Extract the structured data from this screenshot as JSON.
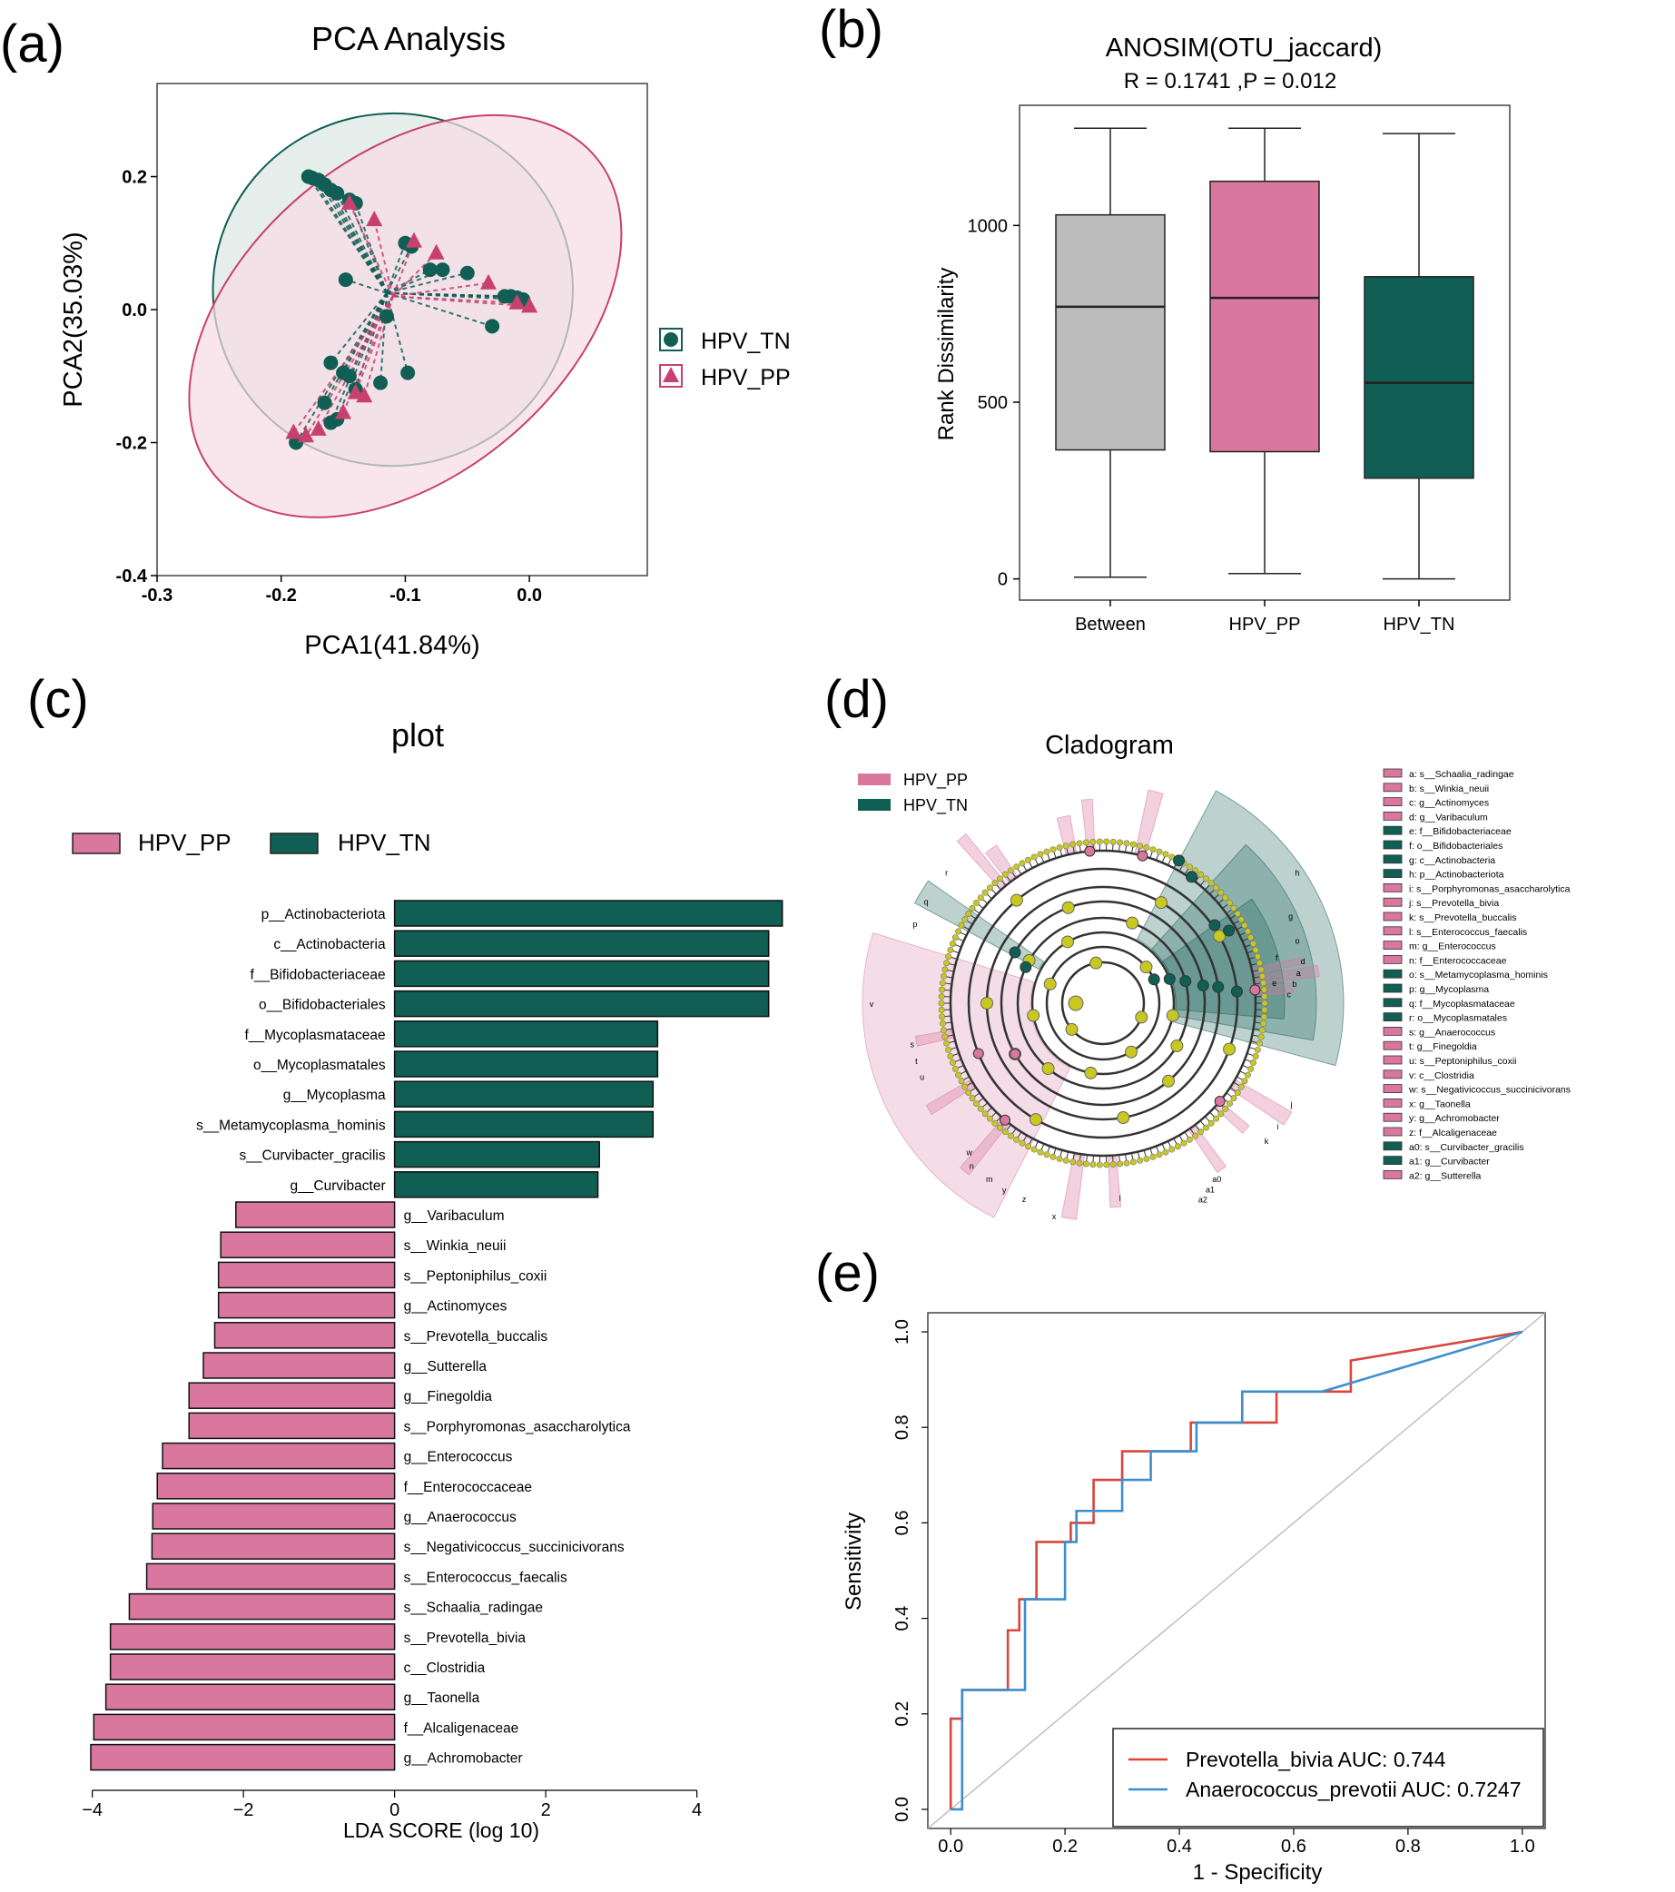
{
  "colors": {
    "pp": "#d9779f",
    "pp_line": "#c8406e",
    "pp_fill": "#f7dbe6",
    "tn": "#115e54",
    "tn_fill": "#dde8e4",
    "grey": "#bcbcbc",
    "roc_red": "#d9453f",
    "roc_blue": "#3c8fcf",
    "yellow": "#c8c820"
  },
  "panel_labels": {
    "a": "(a)",
    "b": "(b)",
    "c": "(c)",
    "d": "(d)",
    "e": "(e)"
  },
  "chart_data": [
    {
      "id": "a",
      "type": "scatter",
      "title": "PCA Analysis",
      "xlabel": "PCA1(41.84%)",
      "ylabel": "PCA2(35.03%)",
      "xlim": [
        -0.3,
        0.095
      ],
      "ylim": [
        -0.4,
        0.34
      ],
      "xticks": [
        -0.3,
        -0.2,
        -0.1,
        0.0
      ],
      "xtick_labels": [
        "-0.3",
        "-0.2",
        "-0.1",
        "0.0"
      ],
      "yticks": [
        -0.4,
        -0.2,
        0.0,
        0.2
      ],
      "ytick_labels": [
        "-0.4",
        "-0.2",
        "0.0",
        "0.2"
      ],
      "legend": [
        "HPV_TN",
        "HPV_PP"
      ],
      "centroids": {
        "HPV_TN": [
          -0.115,
          0.025
        ],
        "HPV_PP": [
          -0.11,
          0.02
        ]
      },
      "series": [
        {
          "name": "HPV_TN",
          "marker": "circle",
          "points": [
            [
              -0.178,
              0.2
            ],
            [
              -0.175,
              0.198
            ],
            [
              -0.17,
              0.195
            ],
            [
              -0.165,
              0.188
            ],
            [
              -0.16,
              0.18
            ],
            [
              -0.155,
              0.175
            ],
            [
              -0.145,
              0.165
            ],
            [
              -0.14,
              0.16
            ],
            [
              -0.148,
              0.045
            ],
            [
              -0.1,
              0.1
            ],
            [
              -0.095,
              0.095
            ],
            [
              -0.08,
              0.06
            ],
            [
              -0.07,
              0.06
            ],
            [
              -0.05,
              0.055
            ],
            [
              -0.02,
              0.02
            ],
            [
              -0.015,
              0.02
            ],
            [
              -0.01,
              0.018
            ],
            [
              -0.005,
              0.015
            ],
            [
              -0.03,
              -0.025
            ],
            [
              -0.115,
              -0.01
            ],
            [
              -0.16,
              -0.08
            ],
            [
              -0.15,
              -0.095
            ],
            [
              -0.145,
              -0.1
            ],
            [
              -0.14,
              -0.12
            ],
            [
              -0.12,
              -0.11
            ],
            [
              -0.098,
              -0.095
            ],
            [
              -0.165,
              -0.14
            ],
            [
              -0.155,
              -0.165
            ],
            [
              -0.16,
              -0.17
            ],
            [
              -0.188,
              -0.2
            ]
          ]
        },
        {
          "name": "HPV_PP",
          "marker": "triangle",
          "points": [
            [
              -0.145,
              0.16
            ],
            [
              -0.125,
              0.135
            ],
            [
              -0.093,
              0.103
            ],
            [
              -0.075,
              0.085
            ],
            [
              -0.033,
              0.04
            ],
            [
              -0.01,
              0.01
            ],
            [
              0.0,
              0.005
            ],
            [
              -0.14,
              -0.125
            ],
            [
              -0.133,
              -0.13
            ],
            [
              -0.15,
              -0.155
            ],
            [
              -0.17,
              -0.18
            ],
            [
              -0.18,
              -0.19
            ],
            [
              -0.19,
              -0.185
            ]
          ]
        }
      ],
      "ellipses": [
        {
          "name": "HPV_TN",
          "cx": -0.11,
          "cy": 0.03,
          "rx": 0.145,
          "ry": 0.265,
          "angle": -5
        },
        {
          "name": "HPV_PP",
          "cx": -0.1,
          "cy": -0.01,
          "rx": 0.2,
          "ry": 0.24,
          "angle": -40
        }
      ]
    },
    {
      "id": "b",
      "type": "box",
      "title": "ANOSIM(OTU_jaccard)",
      "subtitle": "R = 0.1741 ,P = 0.012",
      "ylabel": "Rank Dissimilarity",
      "xlabel": "",
      "ylim": [
        -60,
        1340
      ],
      "yticks": [
        0,
        500,
        1000
      ],
      "ytick_labels": [
        "0",
        "500",
        "1000"
      ],
      "categories": [
        "Between",
        "HPV_PP",
        "HPV_TN"
      ],
      "boxes": [
        {
          "name": "Between",
          "min": 5,
          "q1": 365,
          "median": 770,
          "q3": 1030,
          "max": 1275,
          "color": "grey"
        },
        {
          "name": "HPV_PP",
          "min": 15,
          "q1": 360,
          "median": 795,
          "q3": 1125,
          "max": 1275,
          "color": "pp"
        },
        {
          "name": "HPV_TN",
          "min": 0,
          "q1": 285,
          "median": 555,
          "q3": 855,
          "max": 1260,
          "color": "tn"
        }
      ]
    },
    {
      "id": "c",
      "type": "bar",
      "title": "plot",
      "xlabel": "LDA SCORE (log 10)",
      "xlim": [
        -4.2,
        5.35
      ],
      "xticks": [
        -4,
        -2,
        0,
        2,
        4
      ],
      "xtick_labels": [
        "−4",
        "−2",
        "0",
        "2",
        "4"
      ],
      "legend": [
        "HPV_PP",
        "HPV_TN"
      ],
      "bars": [
        {
          "label": "p__Actinobacteriota",
          "value": 5.13,
          "group": "HPV_TN"
        },
        {
          "label": "c__Actinobacteria",
          "value": 4.95,
          "group": "HPV_TN"
        },
        {
          "label": "f__Bifidobacteriaceae",
          "value": 4.95,
          "group": "HPV_TN"
        },
        {
          "label": "o__Bifidobacteriales",
          "value": 4.95,
          "group": "HPV_TN"
        },
        {
          "label": "f__Mycoplasmataceae",
          "value": 3.48,
          "group": "HPV_TN"
        },
        {
          "label": "o__Mycoplasmatales",
          "value": 3.48,
          "group": "HPV_TN"
        },
        {
          "label": "g__Mycoplasma",
          "value": 3.42,
          "group": "HPV_TN"
        },
        {
          "label": "s__Metamycoplasma_hominis",
          "value": 3.42,
          "group": "HPV_TN"
        },
        {
          "label": "s__Curvibacter_gracilis",
          "value": 2.71,
          "group": "HPV_TN"
        },
        {
          "label": "g__Curvibacter",
          "value": 2.69,
          "group": "HPV_TN"
        },
        {
          "label": "g__Varibaculum",
          "value": -2.1,
          "group": "HPV_PP"
        },
        {
          "label": "s__Winkia_neuii",
          "value": -2.3,
          "group": "HPV_PP"
        },
        {
          "label": "s__Peptoniphilus_coxii",
          "value": -2.33,
          "group": "HPV_PP"
        },
        {
          "label": "g__Actinomyces",
          "value": -2.33,
          "group": "HPV_PP"
        },
        {
          "label": "s__Prevotella_buccalis",
          "value": -2.38,
          "group": "HPV_PP"
        },
        {
          "label": "g__Sutterella",
          "value": -2.53,
          "group": "HPV_PP"
        },
        {
          "label": "g__Finegoldia",
          "value": -2.72,
          "group": "HPV_PP"
        },
        {
          "label": "s__Porphyromonas_asaccharolytica",
          "value": -2.72,
          "group": "HPV_PP"
        },
        {
          "label": "g__Enterococcus",
          "value": -3.07,
          "group": "HPV_PP"
        },
        {
          "label": "f__Enterococcaceae",
          "value": -3.14,
          "group": "HPV_PP"
        },
        {
          "label": "g__Anaerococcus",
          "value": -3.2,
          "group": "HPV_PP"
        },
        {
          "label": "s__Negativicoccus_succinicivorans",
          "value": -3.21,
          "group": "HPV_PP"
        },
        {
          "label": "s__Enterococcus_faecalis",
          "value": -3.28,
          "group": "HPV_PP"
        },
        {
          "label": "s__Schaalia_radingae",
          "value": -3.51,
          "group": "HPV_PP"
        },
        {
          "label": "s__Prevotella_bivia",
          "value": -3.76,
          "group": "HPV_PP"
        },
        {
          "label": "c__Clostridia",
          "value": -3.76,
          "group": "HPV_PP"
        },
        {
          "label": "g__Taonella",
          "value": -3.82,
          "group": "HPV_PP"
        },
        {
          "label": "f__Alcaligenaceae",
          "value": -3.98,
          "group": "HPV_PP"
        },
        {
          "label": "g__Achromobacter",
          "value": -4.02,
          "group": "HPV_PP"
        }
      ]
    },
    {
      "id": "d",
      "type": "cladogram",
      "title": "Cladogram",
      "legend": [
        "HPV_PP",
        "HPV_TN"
      ],
      "key": [
        {
          "text": "a: s__Schaalia_radingae",
          "group": "HPV_PP"
        },
        {
          "text": "b: s__Winkia_neuii",
          "group": "HPV_PP"
        },
        {
          "text": "c: g__Actinomyces",
          "group": "HPV_PP"
        },
        {
          "text": "d: g__Varibaculum",
          "group": "HPV_PP"
        },
        {
          "text": "e: f__Bifidobacteriaceae",
          "group": "HPV_TN"
        },
        {
          "text": "f: o__Bifidobacteriales",
          "group": "HPV_TN"
        },
        {
          "text": "g: c__Actinobacteria",
          "group": "HPV_TN"
        },
        {
          "text": "h: p__Actinobacteriota",
          "group": "HPV_TN"
        },
        {
          "text": "i: s__Porphyromonas_asaccharolytica",
          "group": "HPV_PP"
        },
        {
          "text": "j: s__Prevotella_bivia",
          "group": "HPV_PP"
        },
        {
          "text": "k: s__Prevotella_buccalis",
          "group": "HPV_PP"
        },
        {
          "text": "l: s__Enterococcus_faecalis",
          "group": "HPV_PP"
        },
        {
          "text": "m: g__Enterococcus",
          "group": "HPV_PP"
        },
        {
          "text": "n: f__Enterococcaceae",
          "group": "HPV_PP"
        },
        {
          "text": "o: s__Metamycoplasma_hominis",
          "group": "HPV_TN"
        },
        {
          "text": "p: g__Mycoplasma",
          "group": "HPV_TN"
        },
        {
          "text": "q: f__Mycoplasmataceae",
          "group": "HPV_TN"
        },
        {
          "text": "r: o__Mycoplasmatales",
          "group": "HPV_TN"
        },
        {
          "text": "s: g__Anaerococcus",
          "group": "HPV_PP"
        },
        {
          "text": "t: g__Finegoldia",
          "group": "HPV_PP"
        },
        {
          "text": "u: s__Peptoniphilus_coxii",
          "group": "HPV_PP"
        },
        {
          "text": "v: c__Clostridia",
          "group": "HPV_PP"
        },
        {
          "text": "w: s__Negativicoccus_succinicivorans",
          "group": "HPV_PP"
        },
        {
          "text": "x: g__Taonella",
          "group": "HPV_PP"
        },
        {
          "text": "y: g__Achromobacter",
          "group": "HPV_PP"
        },
        {
          "text": "z: f__Alcaligenaceae",
          "group": "HPV_PP"
        },
        {
          "text": "a0: s__Curvibacter_gracilis",
          "group": "HPV_TN"
        },
        {
          "text": "a1: g__Curvibacter",
          "group": "HPV_TN"
        },
        {
          "text": "a2: g__Sutterella",
          "group": "HPV_PP"
        }
      ],
      "sectors": [
        {
          "group": "HPV_TN",
          "label": "h",
          "start": -62,
          "end": 15,
          "level": 3
        },
        {
          "group": "HPV_TN",
          "label": "g",
          "start": -48,
          "end": 10,
          "level": 2
        },
        {
          "group": "HPV_TN",
          "label": "f",
          "start": -35,
          "end": 5,
          "level": 1
        },
        {
          "group": "HPV_PP",
          "label": "v",
          "start": 117,
          "end": 197,
          "level": 3
        },
        {
          "group": "HPV_TN",
          "label": "r",
          "start": 208,
          "end": 215,
          "level": 2
        }
      ],
      "sector_labels": [
        "h",
        "g",
        "f",
        "e",
        "c",
        "b",
        "a",
        "d",
        "o",
        "v",
        "s",
        "t",
        "u",
        "x",
        "m",
        "n",
        "l",
        "k",
        "i",
        "j",
        "w",
        "y",
        "z",
        "a0",
        "a1",
        "a2",
        "r",
        "q",
        "p"
      ]
    },
    {
      "id": "e",
      "type": "line",
      "title": "",
      "xlabel": "1 - Specificity",
      "ylabel": "Sensitivity",
      "xlim": [
        -0.04,
        1.04
      ],
      "ylim": [
        -0.04,
        1.04
      ],
      "xticks": [
        0.0,
        0.2,
        0.4,
        0.6,
        0.8,
        1.0
      ],
      "xtick_labels": [
        "0.0",
        "0.2",
        "0.4",
        "0.6",
        "0.8",
        "1.0"
      ],
      "yticks": [
        0.0,
        0.2,
        0.4,
        0.6,
        0.8,
        1.0
      ],
      "ytick_labels": [
        "0.0",
        "0.2",
        "0.4",
        "0.6",
        "0.8",
        "1.0"
      ],
      "series": [
        {
          "name": "Prevotella_bivia AUC: 0.744",
          "color": "roc_red",
          "points": [
            [
              0,
              0
            ],
            [
              0,
              0.19
            ],
            [
              0.02,
              0.19
            ],
            [
              0.02,
              0.25
            ],
            [
              0.1,
              0.25
            ],
            [
              0.1,
              0.375
            ],
            [
              0.12,
              0.375
            ],
            [
              0.12,
              0.44
            ],
            [
              0.15,
              0.44
            ],
            [
              0.15,
              0.56
            ],
            [
              0.21,
              0.56
            ],
            [
              0.21,
              0.6
            ],
            [
              0.25,
              0.6
            ],
            [
              0.25,
              0.69
            ],
            [
              0.3,
              0.69
            ],
            [
              0.3,
              0.75
            ],
            [
              0.42,
              0.75
            ],
            [
              0.42,
              0.81
            ],
            [
              0.57,
              0.81
            ],
            [
              0.57,
              0.875
            ],
            [
              0.7,
              0.875
            ],
            [
              0.7,
              0.94
            ],
            [
              1,
              1
            ]
          ]
        },
        {
          "name": "Anaerococcus_prevotii AUC: 0.7247",
          "color": "roc_blue",
          "points": [
            [
              0,
              0
            ],
            [
              0.02,
              0
            ],
            [
              0.02,
              0.25
            ],
            [
              0.13,
              0.25
            ],
            [
              0.13,
              0.44
            ],
            [
              0.2,
              0.44
            ],
            [
              0.2,
              0.56
            ],
            [
              0.22,
              0.56
            ],
            [
              0.22,
              0.625
            ],
            [
              0.3,
              0.625
            ],
            [
              0.3,
              0.69
            ],
            [
              0.35,
              0.69
            ],
            [
              0.35,
              0.75
            ],
            [
              0.43,
              0.75
            ],
            [
              0.43,
              0.81
            ],
            [
              0.51,
              0.81
            ],
            [
              0.51,
              0.875
            ],
            [
              0.65,
              0.875
            ],
            [
              1,
              1
            ]
          ]
        }
      ],
      "diagonal": true
    }
  ]
}
